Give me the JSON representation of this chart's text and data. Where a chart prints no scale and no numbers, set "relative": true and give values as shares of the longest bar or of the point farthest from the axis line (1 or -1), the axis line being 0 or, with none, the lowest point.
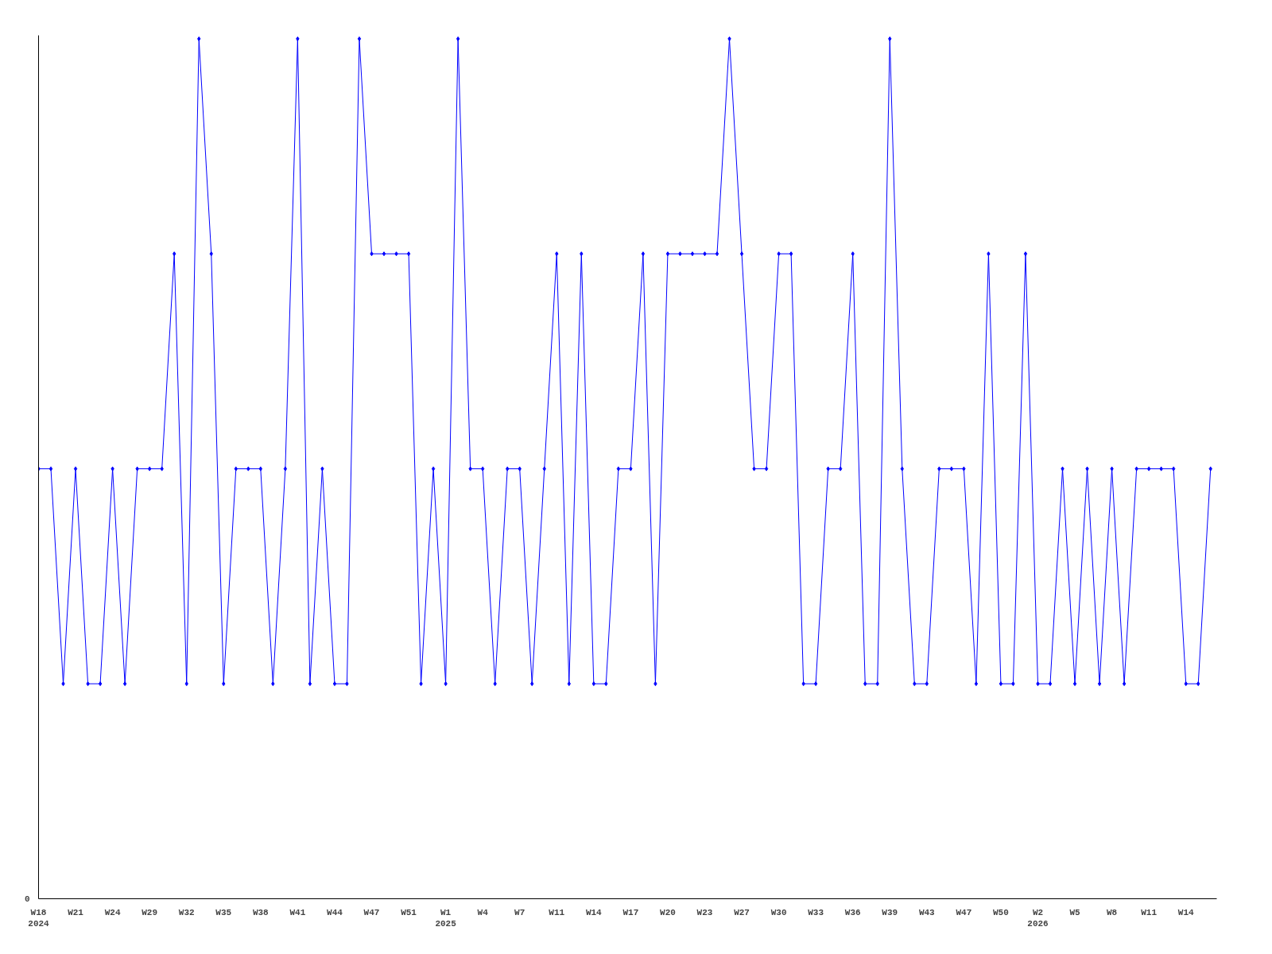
{
  "chart_data": {
    "type": "line",
    "relative": true,
    "marker": "diamond",
    "grid": false,
    "categories": [
      "W18\n2024",
      null,
      null,
      "W21",
      null,
      null,
      "W24",
      null,
      null,
      "W29",
      null,
      null,
      "W32",
      null,
      null,
      "W35",
      null,
      null,
      "W38",
      null,
      null,
      "W41",
      null,
      null,
      "W44",
      null,
      null,
      "W47",
      null,
      null,
      "W51",
      null,
      null,
      "W1\n2025",
      null,
      null,
      "W4",
      null,
      null,
      "W7",
      null,
      null,
      "W11",
      null,
      null,
      "W14",
      null,
      null,
      "W17",
      null,
      null,
      "W20",
      null,
      null,
      "W23",
      null,
      null,
      "W27",
      null,
      null,
      "W30",
      null,
      null,
      "W33",
      null,
      null,
      "W36",
      null,
      null,
      "W39",
      null,
      null,
      "W43",
      null,
      null,
      "W47",
      null,
      null,
      "W50",
      null,
      null,
      "W2\n2026",
      null,
      null,
      "W5",
      null,
      null,
      "W8",
      null,
      null,
      "W11",
      null,
      null,
      "W14",
      null,
      null
    ],
    "series": [
      {
        "color": "#0000ff",
        "values": [
          0.5,
          0.5,
          0.25,
          0.5,
          0.25,
          0.25,
          0.5,
          0.25,
          0.5,
          0.5,
          0.5,
          0.75,
          0.25,
          1,
          0.75,
          0.25,
          0.5,
          0.5,
          0.5,
          0.25,
          0.5,
          1,
          0.25,
          0.5,
          0.25,
          0.25,
          1,
          0.75,
          0.75,
          0.75,
          0.75,
          0.25,
          0.5,
          0.25,
          1,
          0.5,
          0.5,
          0.25,
          0.5,
          0.5,
          0.25,
          0.5,
          0.75,
          0.25,
          0.75,
          0.25,
          0.25,
          0.5,
          0.5,
          0.75,
          0.25,
          0.75,
          0.75,
          0.75,
          0.75,
          0.75,
          1,
          0.75,
          0.5,
          0.5,
          0.75,
          0.75,
          0.25,
          0.25,
          0.5,
          0.5,
          0.75,
          0.25,
          0.25,
          1,
          0.5,
          0.25,
          0.25,
          0.5,
          0.5,
          0.5,
          0.25,
          0.75,
          0.25,
          0.25,
          0.75,
          0.25,
          0.25,
          0.5,
          0.25,
          0.5,
          0.25,
          0.5,
          0.25,
          0.5,
          0.5,
          0.5,
          0.5,
          0.25,
          0.25,
          0.5
        ]
      }
    ],
    "annotations": [
      "0"
    ]
  }
}
